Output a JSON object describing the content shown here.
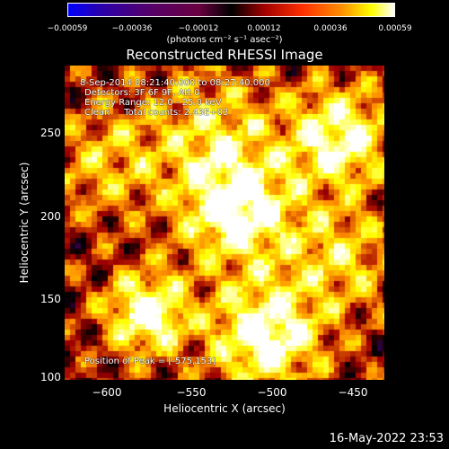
{
  "colorbar": {
    "ticks": [
      "−0.00059",
      "−0.00036",
      "−0.00012",
      "0.00012",
      "0.00036",
      "0.00059"
    ],
    "units": "(photons cm⁻² s⁻¹ asec⁻²)",
    "colors": [
      "#0000ff",
      "#55006a",
      "#000000",
      "#a00000",
      "#ff9000",
      "#ffff00",
      "#ffffff"
    ]
  },
  "title": "Reconstructed RHESSI Image",
  "annotations": {
    "line1": "8-Sep-2014 08:21:40.000 to 08:27:40.000",
    "line2": "Detectors: 3F 6F 9F, Att 0",
    "line3": "Energy Range: 12.0 - 25.0 keV",
    "line4": "Clean     Total counts: 2.43E+03",
    "peak": "Position of Peak = [-575,153]"
  },
  "axes": {
    "xlabel": "Heliocentric X (arcsec)",
    "ylabel": "Heliocentric Y (arcsec)",
    "xticks": [
      "−600",
      "−550",
      "−500",
      "−450"
    ],
    "yticks": [
      "250",
      "200",
      "150",
      "100"
    ]
  },
  "timestamp": "16-May-2022 23:53"
}
